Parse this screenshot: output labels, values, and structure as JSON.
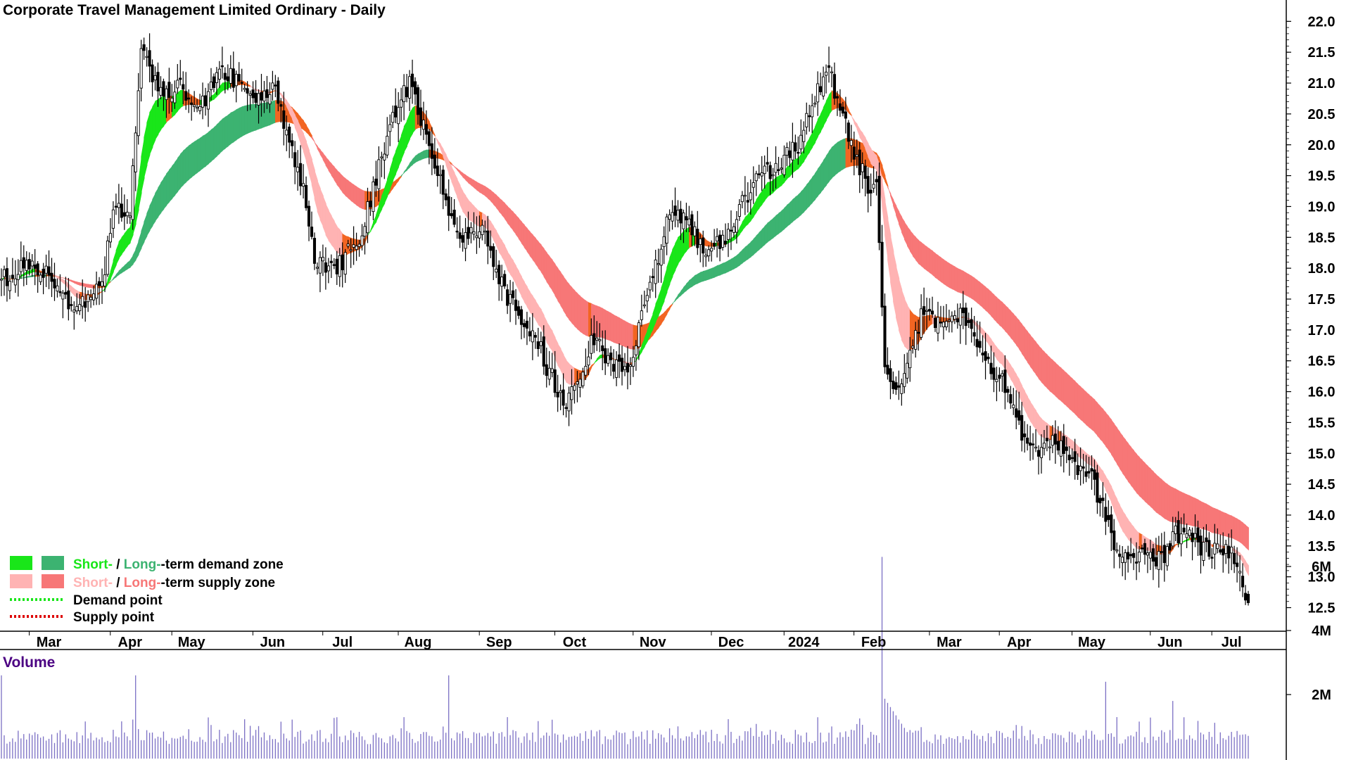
{
  "chart_data": {
    "type": "candlestick",
    "title": "Corporate Travel Management Limited Ordinary - Daily",
    "price_axis": {
      "ylim": [
        12.2,
        22.4
      ],
      "ticks": [
        "22.0",
        "21.5",
        "21.0",
        "20.5",
        "20.0",
        "19.5",
        "19.0",
        "18.5",
        "18.0",
        "17.5",
        "17.0",
        "16.5",
        "16.0",
        "15.5",
        "15.0",
        "14.5",
        "14.0",
        "13.5",
        "13.0",
        "12.5"
      ]
    },
    "x_ticks": [
      "Mar",
      "Apr",
      "May",
      "Jun",
      "Jul",
      "Aug",
      "Sep",
      "Oct",
      "Nov",
      "Dec",
      "2024",
      "Feb",
      "Mar",
      "Apr",
      "May",
      "Jun",
      "Jul"
    ],
    "price_keypoints": [
      [
        0,
        17.8
      ],
      [
        8,
        18.0
      ],
      [
        18,
        17.9
      ],
      [
        25,
        17.3
      ],
      [
        33,
        17.5
      ],
      [
        37,
        18.0
      ],
      [
        40,
        19.0
      ],
      [
        46,
        18.9
      ],
      [
        50,
        21.5
      ],
      [
        56,
        20.9
      ],
      [
        64,
        20.9
      ],
      [
        72,
        20.7
      ],
      [
        80,
        21.2
      ],
      [
        90,
        20.7
      ],
      [
        98,
        20.9
      ],
      [
        103,
        20.0
      ],
      [
        108,
        19.3
      ],
      [
        112,
        18.1
      ],
      [
        120,
        18.0
      ],
      [
        128,
        18.5
      ],
      [
        135,
        19.6
      ],
      [
        141,
        20.6
      ],
      [
        146,
        21.0
      ],
      [
        152,
        20.2
      ],
      [
        160,
        19.0
      ],
      [
        165,
        18.4
      ],
      [
        172,
        18.7
      ],
      [
        180,
        17.6
      ],
      [
        190,
        17.0
      ],
      [
        196,
        16.3
      ],
      [
        202,
        15.8
      ],
      [
        206,
        16.1
      ],
      [
        212,
        16.9
      ],
      [
        218,
        16.4
      ],
      [
        225,
        16.3
      ],
      [
        230,
        17.4
      ],
      [
        235,
        18.2
      ],
      [
        240,
        19.0
      ],
      [
        246,
        18.7
      ],
      [
        252,
        18.2
      ],
      [
        260,
        18.6
      ],
      [
        268,
        19.3
      ],
      [
        278,
        19.7
      ],
      [
        285,
        20.0
      ],
      [
        292,
        20.9
      ],
      [
        296,
        21.2
      ],
      [
        300,
        20.6
      ],
      [
        305,
        19.9
      ],
      [
        310,
        19.3
      ],
      [
        313,
        19.5
      ],
      [
        316,
        16.3
      ],
      [
        320,
        16.0
      ],
      [
        325,
        16.6
      ],
      [
        330,
        17.4
      ],
      [
        337,
        17.0
      ],
      [
        343,
        17.3
      ],
      [
        350,
        16.6
      ],
      [
        358,
        16.2
      ],
      [
        364,
        15.4
      ],
      [
        370,
        15.0
      ],
      [
        378,
        15.2
      ],
      [
        385,
        14.8
      ],
      [
        390,
        14.6
      ],
      [
        395,
        14.0
      ],
      [
        400,
        13.2
      ],
      [
        408,
        13.4
      ],
      [
        415,
        13.3
      ],
      [
        420,
        13.7
      ],
      [
        426,
        13.6
      ],
      [
        432,
        13.4
      ],
      [
        438,
        13.5
      ],
      [
        442,
        13.3
      ],
      [
        446,
        12.6
      ]
    ],
    "legend": [
      {
        "short": "Short-",
        "slash": " / ",
        "long": "Long-",
        "rest": "-term demand zone",
        "short_color": "#19e619",
        "long_color": "#3cb371"
      },
      {
        "short": "Short-",
        "slash": " / ",
        "long": "Long-",
        "rest": "-term supply zone",
        "short_color": "#ffb3b3",
        "long_color": "#f77777"
      },
      {
        "label": "Demand point",
        "color": "#19e619"
      },
      {
        "label": "Supply point",
        "color": "#dd0000"
      }
    ],
    "volume": {
      "title": "Volume",
      "ylim": [
        0,
        6500000
      ],
      "ticks": [
        "6M",
        "4M",
        "2M"
      ],
      "spikes": [
        [
          0,
          2.6
        ],
        [
          48,
          2.6
        ],
        [
          160,
          2.6
        ],
        [
          315,
          6.3
        ],
        [
          395,
          2.4
        ],
        [
          419,
          1.8
        ]
      ]
    },
    "colors": {
      "short_demand": "#19e619",
      "long_demand": "#3cb371",
      "short_supply": "#ffb3b3",
      "long_supply": "#f77777",
      "transition": "#f26522",
      "volume_bar": "#7b6fc4",
      "volume_title": "#4b0082"
    }
  }
}
